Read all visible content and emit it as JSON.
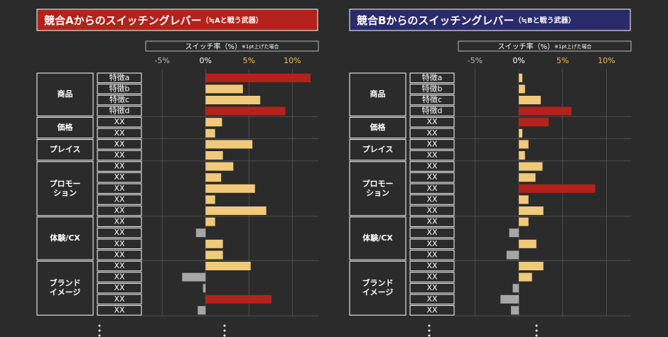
{
  "chart_data": [
    {
      "type": "bar",
      "orientation": "horizontal",
      "title": "競合Aからのスイッチングレバー",
      "subtitle": "（≒Aと戦う武器）",
      "title_color": "#b3231b",
      "axis_label": "スイッチ率（%）",
      "axis_note": "※1pt上げた場合",
      "xlim": [
        -6.9,
        13
      ],
      "xticks": [
        {
          "value": -5,
          "label": "-5%"
        },
        {
          "value": 0,
          "label": "0%"
        },
        {
          "value": 5,
          "label": "5%"
        },
        {
          "value": 10,
          "label": "10%"
        }
      ],
      "xtick_colors": [
        "#bbbbbb",
        "#ffffff",
        "#f2c14e",
        "#f2c14e"
      ],
      "groups": [
        {
          "label": [
            "商品"
          ],
          "categories": [
            "特徴a",
            "特徴b",
            "特徴c",
            "特徴d"
          ]
        },
        {
          "label": [
            "価格"
          ],
          "categories": [
            "XX",
            "XX"
          ]
        },
        {
          "label": [
            "プレイス"
          ],
          "categories": [
            "XX",
            "XX"
          ]
        },
        {
          "label": [
            "プロモー",
            "ション"
          ],
          "categories": [
            "XX",
            "XX",
            "XX",
            "XX",
            "XX"
          ]
        },
        {
          "label": [
            "体験/CX"
          ],
          "categories": [
            "XX",
            "XX",
            "XX",
            "XX"
          ]
        },
        {
          "label": [
            "ブランド",
            "イメージ"
          ],
          "categories": [
            "XX",
            "XX",
            "XX",
            "XX",
            "XX"
          ]
        }
      ],
      "values": [
        12.1,
        4.3,
        6.3,
        9.2,
        1.9,
        1.1,
        5.4,
        2.0,
        3.2,
        1.8,
        5.7,
        1.1,
        7.0,
        1.1,
        -1.1,
        2.0,
        2.0,
        5.2,
        -2.7,
        -0.3,
        7.6,
        -0.9
      ],
      "colors": [
        "#b3231b",
        "#f0c97a",
        "#f0c97a",
        "#b3231b",
        "#f0c97a",
        "#f0c97a",
        "#f0c97a",
        "#f0c97a",
        "#f0c97a",
        "#f0c97a",
        "#f0c97a",
        "#f0c97a",
        "#f0c97a",
        "#f0c97a",
        "#a6a6a6",
        "#f0c97a",
        "#f0c97a",
        "#f0c97a",
        "#a6a6a6",
        "#a6a6a6",
        "#b3231b",
        "#a6a6a6"
      ]
    },
    {
      "type": "bar",
      "orientation": "horizontal",
      "title": "競合Bからのスイッチングレバー",
      "subtitle": "（≒Bと戦う武器）",
      "title_color": "#2b2a6b",
      "axis_label": "スイッチ率（%）",
      "axis_note": "※1pt上げた場合",
      "xlim": [
        -6.9,
        12.8
      ],
      "xticks": [
        {
          "value": -5,
          "label": "-5%"
        },
        {
          "value": 0,
          "label": "0%"
        },
        {
          "value": 5,
          "label": "5%"
        },
        {
          "value": 10,
          "label": "10%"
        }
      ],
      "xtick_colors": [
        "#bbbbbb",
        "#ffffff",
        "#f2c14e",
        "#f2c14e"
      ],
      "groups": [
        {
          "label": [
            "商品"
          ],
          "categories": [
            "特徴a",
            "特徴b",
            "特徴c",
            "特徴d"
          ]
        },
        {
          "label": [
            "価格"
          ],
          "categories": [
            "XX",
            "XX"
          ]
        },
        {
          "label": [
            "プレイス"
          ],
          "categories": [
            "XX",
            "XX"
          ]
        },
        {
          "label": [
            "プロモー",
            "ション"
          ],
          "categories": [
            "XX",
            "XX",
            "XX",
            "XX",
            "XX"
          ]
        },
        {
          "label": [
            "体験/CX"
          ],
          "categories": [
            "XX",
            "XX",
            "XX",
            "XX"
          ]
        },
        {
          "label": [
            "ブランド",
            "イメージ"
          ],
          "categories": [
            "XX",
            "XX",
            "XX",
            "XX",
            "XX"
          ]
        }
      ],
      "values": [
        0.4,
        0.7,
        2.5,
        6.0,
        3.4,
        0.4,
        1.1,
        0.7,
        2.7,
        1.9,
        8.7,
        1.1,
        2.8,
        1.1,
        -1.1,
        2.0,
        -1.4,
        2.8,
        1.5,
        -0.7,
        -2.1,
        -0.9
      ],
      "colors": [
        "#f0c97a",
        "#f0c97a",
        "#f0c97a",
        "#b3231b",
        "#b3231b",
        "#f0c97a",
        "#f0c97a",
        "#f0c97a",
        "#f0c97a",
        "#f0c97a",
        "#b3231b",
        "#f0c97a",
        "#f0c97a",
        "#f0c97a",
        "#a6a6a6",
        "#f0c97a",
        "#a6a6a6",
        "#f0c97a",
        "#f0c97a",
        "#a6a6a6",
        "#a6a6a6",
        "#a6a6a6"
      ]
    }
  ]
}
